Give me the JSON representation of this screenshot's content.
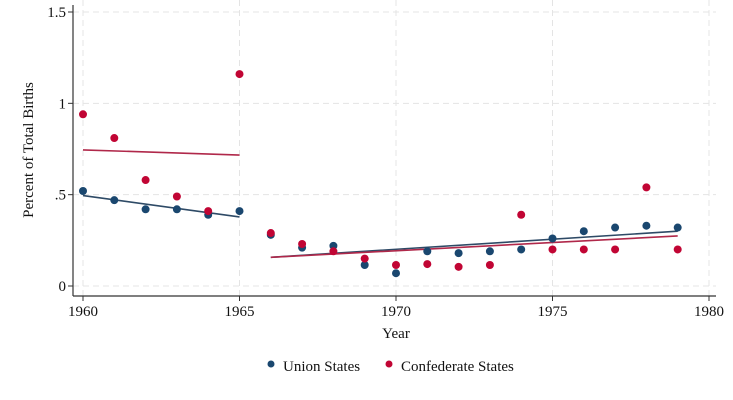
{
  "chart_data": {
    "type": "scatter",
    "title": "",
    "xlabel": "Year",
    "ylabel": "Percent of Total Births",
    "xlim": [
      1960,
      1980
    ],
    "ylim": [
      0,
      1.5
    ],
    "xticks": [
      1960,
      1965,
      1970,
      1975,
      1980
    ],
    "yticks": [
      0,
      0.5,
      1,
      1.5
    ],
    "ytick_labels": [
      "0",
      ".5",
      "1",
      "1.5"
    ],
    "grid": true,
    "legend_position": "bottom",
    "x": [
      1960,
      1961,
      1962,
      1963,
      1964,
      1965,
      1966,
      1967,
      1968,
      1969,
      1970,
      1971,
      1972,
      1973,
      1974,
      1975,
      1976,
      1977,
      1978,
      1979
    ],
    "series": [
      {
        "name": "Union States",
        "color": "#1a476f",
        "values": [
          0.52,
          0.47,
          0.42,
          0.42,
          0.39,
          0.41,
          0.28,
          0.21,
          0.22,
          0.115,
          0.07,
          0.19,
          0.18,
          0.19,
          0.2,
          0.26,
          0.3,
          0.32,
          0.33,
          0.32
        ],
        "fit_lines": [
          {
            "x": [
              1960,
              1965
            ],
            "y": [
              0.495,
              0.378
            ]
          },
          {
            "x": [
              1966,
              1979
            ],
            "y": [
              0.157,
              0.3
            ]
          }
        ]
      },
      {
        "name": "Confederate States",
        "color": "#c10534",
        "values": [
          0.94,
          0.81,
          0.58,
          0.49,
          0.41,
          1.16,
          0.29,
          0.23,
          0.19,
          0.15,
          0.115,
          0.12,
          0.105,
          0.115,
          0.39,
          0.2,
          0.2,
          0.2,
          0.54,
          0.2
        ],
        "fit_lines": [
          {
            "x": [
              1960,
              1965
            ],
            "y": [
              0.745,
              0.717
            ]
          },
          {
            "x": [
              1966,
              1979
            ],
            "y": [
              0.157,
              0.274
            ]
          }
        ]
      }
    ]
  }
}
